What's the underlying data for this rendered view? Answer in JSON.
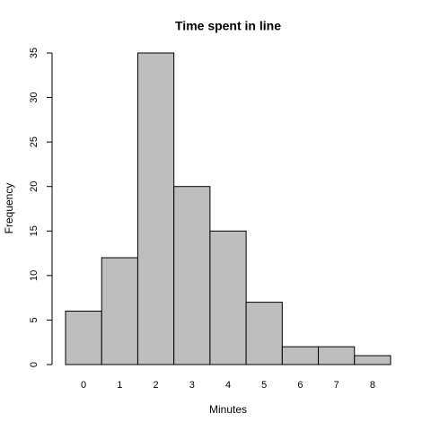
{
  "chart_data": {
    "type": "bar",
    "title": "Time spent in line",
    "x_label": "Minutes",
    "y_label": "Frequency",
    "categories": [
      "0",
      "1",
      "2",
      "3",
      "4",
      "5",
      "6",
      "7",
      "8"
    ],
    "values": [
      6,
      12,
      35,
      20,
      15,
      7,
      2,
      2,
      1
    ],
    "color": "#bebebe",
    "ylim": [
      0,
      35
    ],
    "yticks": [
      0,
      5,
      10,
      15,
      20,
      25,
      30,
      35
    ],
    "grid": false
  }
}
